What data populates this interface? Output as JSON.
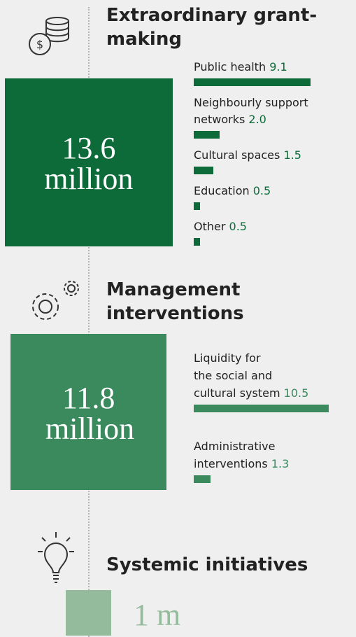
{
  "sections": [
    {
      "title": "Extraordinary grant-making",
      "total": 13.6,
      "total_label": "13.6 million",
      "items": [
        {
          "name": [
            "Public health"
          ],
          "value": 9.1
        },
        {
          "name": [
            "Neighbourly support",
            "networks"
          ],
          "value": {
            "value": 2,
            "label": "2.0"
          }
        },
        {
          "name": [
            "Cultural spaces"
          ],
          "value": 1.5
        },
        {
          "name": [
            "Education"
          ],
          "value": 0.5
        },
        {
          "name": [
            "Other"
          ],
          "value": 0.5
        }
      ]
    },
    {
      "title": "Management interventions",
      "total": 11.8,
      "total_label": "11.8 million",
      "items": [
        {
          "name": [
            "Liquidity for",
            "the social and",
            "cultural system"
          ],
          "value": 10.5
        },
        {
          "name": [
            "Administrative",
            "interventions"
          ],
          "value": 1.3
        }
      ]
    },
    {
      "title": "Systemic initiatives",
      "total": 1,
      "total_label": "1 m",
      "items": []
    }
  ]
}
